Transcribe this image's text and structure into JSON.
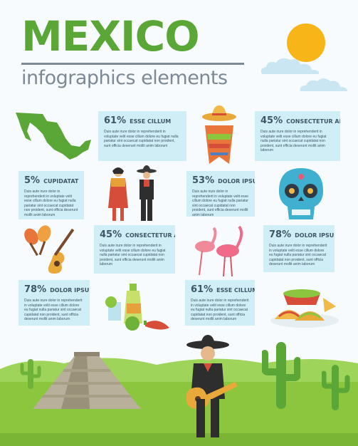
{
  "header": {
    "title": "MEXICO",
    "subtitle": "infographics elements"
  },
  "colors": {
    "title": "#5aa637",
    "subtitle": "#7d8a95",
    "card_bg": "#cfeef6",
    "card_text": "#3f5666",
    "sky": "#f7fbfd",
    "grass": "#8cc63f",
    "sun": "#f8b518"
  },
  "body_text": "Duis aute irure dolor in reprehenderit in voluptate velit esse cillum dolore eu fugiat nulla pariatur sint occaecat cupidatat non proident, sunt officia deserunt mollit anim laborum",
  "cards": [
    {
      "id": "card-1",
      "percent": "61%",
      "label": "ESSE CILLUM"
    },
    {
      "id": "card-2",
      "percent": "45%",
      "label": "CONSECTETUR ADIPIS"
    },
    {
      "id": "card-3",
      "percent": "5%",
      "label": "CUPIDATAT"
    },
    {
      "id": "card-4",
      "percent": "53%",
      "label": "DOLOR IPSUM"
    },
    {
      "id": "card-5",
      "percent": "45%",
      "label": "CONSECTETUR ADIPIS"
    },
    {
      "id": "card-6",
      "percent": "78%",
      "label": "DOLOR IPSUM"
    },
    {
      "id": "card-7",
      "percent": "78%",
      "label": "DOLOR IPSUM"
    },
    {
      "id": "card-8",
      "percent": "61%",
      "label": "ESSE CILLUM"
    }
  ],
  "illustrations": [
    "mexico-map-icon",
    "sombrero-poncho-icon",
    "traditional-couple-icon",
    "sugar-skull-icon",
    "maracas-guitar-icon",
    "flamingos-icon",
    "tequila-limes-chili-icon",
    "tacos-guacamole-icon",
    "pyramid-icon",
    "cactus-icon",
    "mariachi-icon",
    "sun-icon",
    "cloud-icon"
  ]
}
